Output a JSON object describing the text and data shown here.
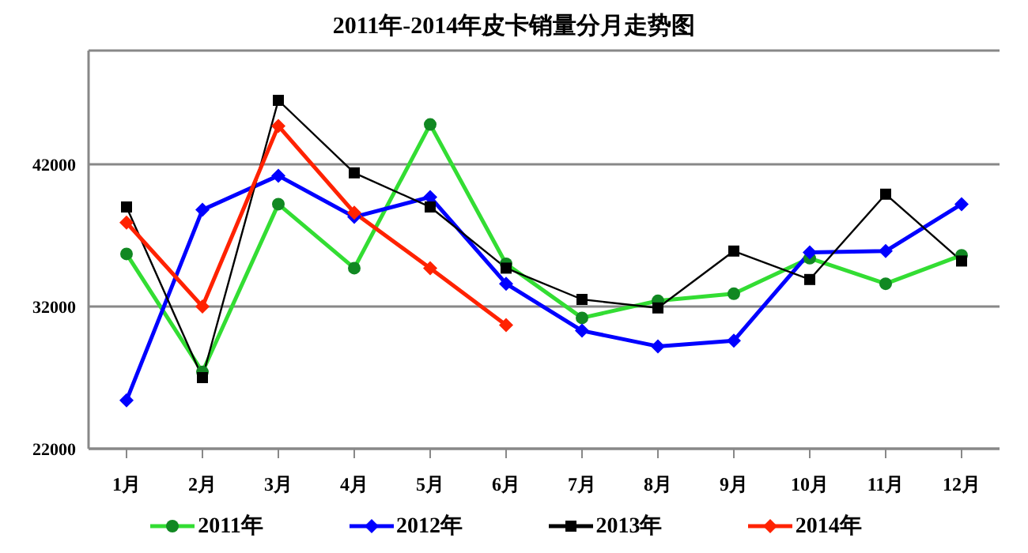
{
  "chart_data": {
    "type": "line",
    "title": "2011年-2014年皮卡销量分月走势图",
    "categories": [
      "1月",
      "2月",
      "3月",
      "4月",
      "5月",
      "6月",
      "7月",
      "8月",
      "9月",
      "10月",
      "11月",
      "12月"
    ],
    "series": [
      {
        "name": "2011年",
        "color": "#33dd33",
        "marker": "circle",
        "values": [
          35700,
          27400,
          39200,
          34700,
          44800,
          35000,
          31200,
          32400,
          32900,
          35400,
          33600,
          35600
        ]
      },
      {
        "name": "2012年",
        "color": "#0000ff",
        "marker": "diamond",
        "values": [
          25400,
          38800,
          41200,
          38300,
          39700,
          33600,
          30300,
          29200,
          29600,
          35800,
          35900,
          39200
        ]
      },
      {
        "name": "2013年",
        "color": "#000000",
        "marker": "square",
        "values": [
          39000,
          27000,
          46500,
          41400,
          39000,
          34700,
          32500,
          31900,
          35900,
          33900,
          39900,
          35200
        ]
      },
      {
        "name": "2014年",
        "color": "#ff2200",
        "marker": "diamond",
        "values": [
          37900,
          32000,
          44700,
          38600,
          34700,
          30700,
          null,
          null,
          null,
          null,
          null,
          null
        ]
      }
    ],
    "ylim": [
      22000,
      50000
    ],
    "yticks": [
      22000,
      32000,
      42000
    ],
    "grid": "y",
    "legend": "bottom"
  }
}
